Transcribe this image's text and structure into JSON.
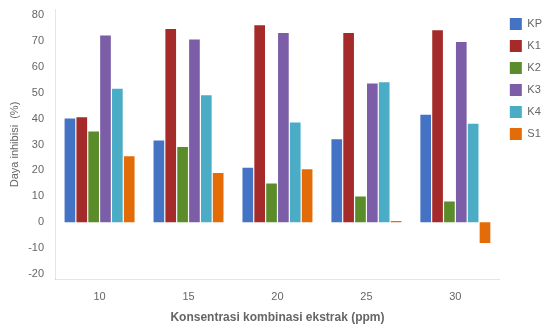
{
  "chart_data": {
    "type": "bar",
    "xlabel": "Konsentrasi kombinasi ekstrak (ppm)",
    "ylabel": "Daya inhibisi  (%)",
    "categories": [
      10,
      15,
      20,
      25,
      30
    ],
    "series": [
      {
        "name": "KP",
        "color": "#4472C4",
        "values": [
          40,
          31.5,
          21,
          32,
          41.5
        ]
      },
      {
        "name": "K1",
        "color": "#A52A2A",
        "values": [
          40.5,
          74.5,
          76,
          73,
          74
        ]
      },
      {
        "name": "K2",
        "color": "#5B8C2A",
        "values": [
          35,
          29,
          15,
          10,
          8
        ]
      },
      {
        "name": "K3",
        "color": "#7B5EA7",
        "values": [
          72,
          70.5,
          73,
          53.5,
          69.5
        ]
      },
      {
        "name": "K4",
        "color": "#4BACC6",
        "values": [
          51.5,
          49,
          38.5,
          54,
          38
        ]
      },
      {
        "name": "S1",
        "color": "#E36C09",
        "values": [
          25.5,
          19,
          20.5,
          0.5,
          -8
        ]
      }
    ],
    "ylim": [
      -22,
      82
    ],
    "yticks": [
      -20,
      -10,
      0,
      10,
      20,
      30,
      40,
      50,
      60,
      70,
      80
    ],
    "grid": false,
    "legend": "upper right"
  }
}
